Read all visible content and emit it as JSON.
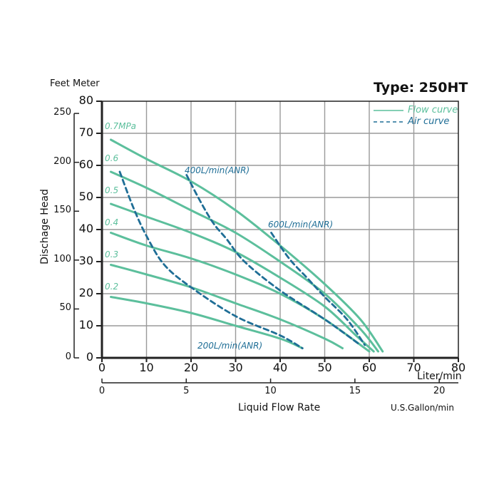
{
  "chart_data": {
    "type": "line",
    "title": "Type: 250HT",
    "xlabel": "Liquid Flow Rate",
    "xunit_primary": "Liter/min",
    "xunit_secondary": "U.S.Gallon/min",
    "ylabel": "Dischage Head",
    "yunits": "Feet Meter",
    "xlim": [
      0,
      80
    ],
    "ylim": [
      0,
      80
    ],
    "x_ticks": [
      0,
      10,
      20,
      30,
      40,
      50,
      60,
      70,
      80
    ],
    "y_ticks_meter": [
      0,
      10,
      20,
      30,
      40,
      50,
      60,
      70,
      80
    ],
    "y_ticks_feet": [
      0,
      50,
      100,
      150,
      200,
      250
    ],
    "x_ticks_gallon": [
      0,
      5,
      10,
      15,
      20
    ],
    "grid": true,
    "legend": [
      {
        "name": "Flow curve",
        "style": "solid",
        "color": "#5cbf9c"
      },
      {
        "name": "Air curve",
        "style": "dashed",
        "color": "#1f6e96"
      }
    ],
    "series": [
      {
        "name": "0.7MPa",
        "kind": "flow",
        "points": [
          [
            2,
            68
          ],
          [
            10,
            62
          ],
          [
            20,
            55
          ],
          [
            30,
            46
          ],
          [
            40,
            35
          ],
          [
            50,
            23
          ],
          [
            58,
            12
          ],
          [
            63,
            2
          ]
        ]
      },
      {
        "name": "0.6",
        "kind": "flow",
        "points": [
          [
            2,
            58
          ],
          [
            10,
            53
          ],
          [
            20,
            46
          ],
          [
            30,
            39
          ],
          [
            40,
            30
          ],
          [
            50,
            20
          ],
          [
            58,
            9
          ],
          [
            62,
            2
          ]
        ]
      },
      {
        "name": "0.5",
        "kind": "flow",
        "points": [
          [
            2,
            48
          ],
          [
            10,
            44
          ],
          [
            20,
            39
          ],
          [
            30,
            33
          ],
          [
            40,
            25
          ],
          [
            50,
            16
          ],
          [
            57,
            7
          ],
          [
            61,
            2
          ]
        ]
      },
      {
        "name": "0.4",
        "kind": "flow",
        "points": [
          [
            2,
            39
          ],
          [
            10,
            35
          ],
          [
            20,
            31
          ],
          [
            30,
            26
          ],
          [
            40,
            20
          ],
          [
            50,
            12
          ],
          [
            60,
            2
          ]
        ]
      },
      {
        "name": "0.3",
        "kind": "flow",
        "points": [
          [
            2,
            29
          ],
          [
            10,
            26
          ],
          [
            20,
            22
          ],
          [
            30,
            17
          ],
          [
            40,
            12
          ],
          [
            50,
            6
          ],
          [
            54,
            3
          ]
        ]
      },
      {
        "name": "0.2",
        "kind": "flow",
        "points": [
          [
            2,
            19
          ],
          [
            10,
            17
          ],
          [
            20,
            14
          ],
          [
            30,
            10
          ],
          [
            40,
            6
          ],
          [
            45,
            3
          ]
        ]
      },
      {
        "name": "200L/min(ANR)",
        "kind": "air",
        "points": [
          [
            4,
            58
          ],
          [
            7,
            47
          ],
          [
            10,
            38
          ],
          [
            14,
            29
          ],
          [
            20,
            22
          ],
          [
            30,
            13
          ],
          [
            40,
            7
          ],
          [
            45,
            3
          ]
        ]
      },
      {
        "name": "400L/min(ANR)",
        "kind": "air",
        "points": [
          [
            19,
            57
          ],
          [
            22,
            49
          ],
          [
            25,
            42
          ],
          [
            28,
            37
          ],
          [
            32,
            30
          ],
          [
            40,
            21
          ],
          [
            50,
            12
          ],
          [
            58,
            4
          ]
        ]
      },
      {
        "name": "600L/min(ANR)",
        "kind": "air",
        "points": [
          [
            38,
            39
          ],
          [
            42,
            31
          ],
          [
            46,
            25
          ],
          [
            50,
            19
          ],
          [
            55,
            12
          ],
          [
            59,
            4
          ]
        ]
      }
    ]
  },
  "labels": {
    "title": "Type: 250HT",
    "units_top": "Feet Meter",
    "ylabel": "Dischage Head",
    "xunit_primary": "Liter/min",
    "xlabel": "Liquid Flow Rate",
    "xunit_secondary": "U.S.Gallon/min",
    "legend_flow": "Flow curve",
    "legend_air": "Air curve",
    "series_labels": {
      "p07": "0.7MPa",
      "p06": "0.6",
      "p05": "0.5",
      "p04": "0.4",
      "p03": "0.3",
      "p02": "0.2",
      "a200": "200L/min(ANR)",
      "a400": "400L/min(ANR)",
      "a600": "600L/min(ANR)"
    },
    "y_meter": [
      "0",
      "10",
      "20",
      "30",
      "40",
      "50",
      "60",
      "70",
      "80"
    ],
    "y_feet": [
      "0",
      "50",
      "100",
      "150",
      "200",
      "250"
    ],
    "x_liter": [
      "0",
      "10",
      "20",
      "30",
      "40",
      "50",
      "60",
      "70",
      "80"
    ],
    "x_gallon": [
      "0",
      "5",
      "10",
      "15",
      "20"
    ]
  },
  "colors": {
    "flow": "#5cbf9c",
    "air": "#1f6e96",
    "grid": "#9a9a9a",
    "axis": "#222222"
  }
}
